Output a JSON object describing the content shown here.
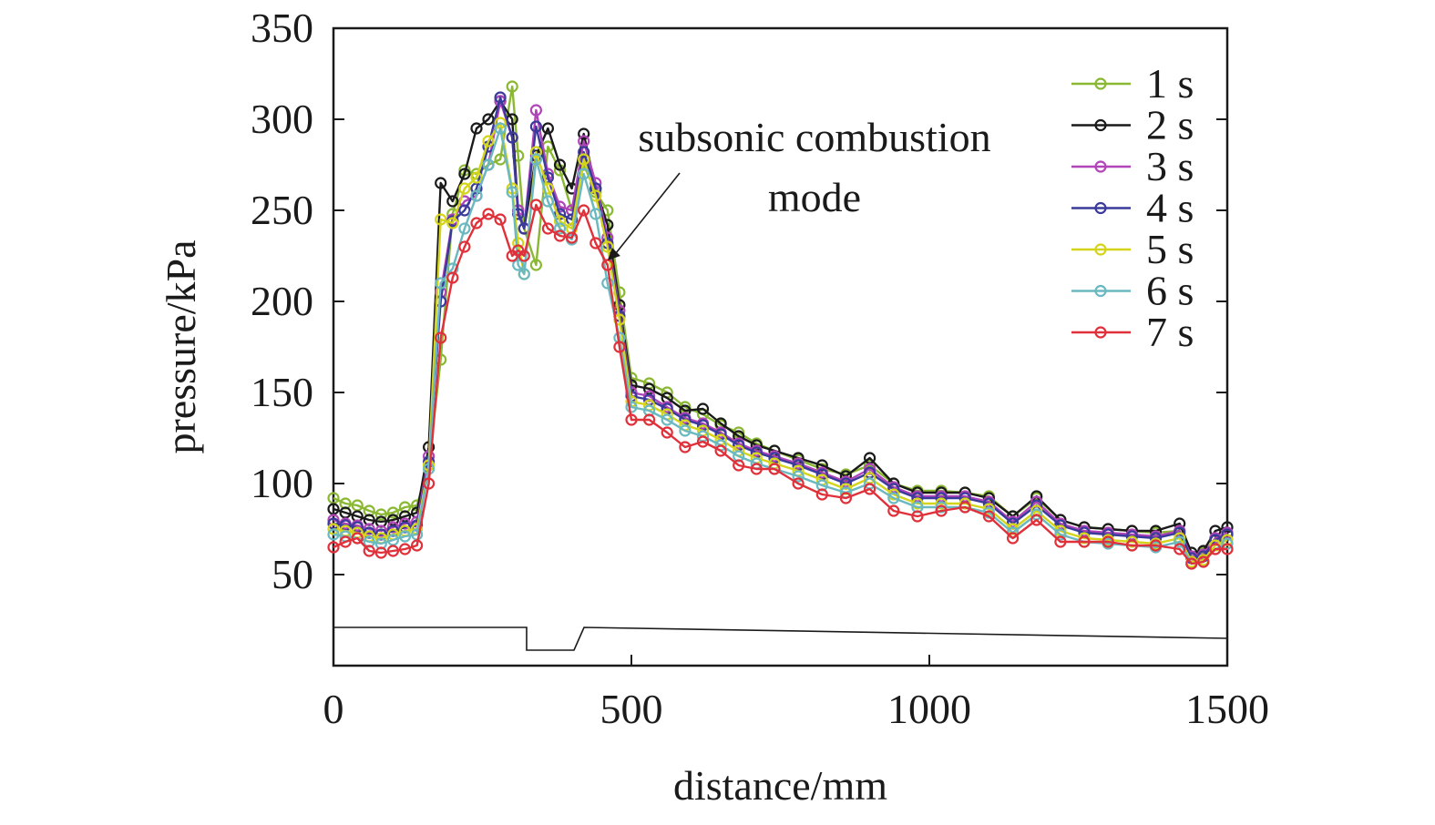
{
  "chart_data": {
    "type": "line",
    "title": "",
    "xlabel": "distance/mm",
    "ylabel": "pressure/kPa",
    "xlim": [
      0,
      1500
    ],
    "ylim": [
      0,
      350
    ],
    "x_ticks": [
      0,
      500,
      1000,
      1500
    ],
    "y_ticks": [
      50,
      100,
      150,
      200,
      250,
      300,
      350
    ],
    "x_tick_labels": [
      "0",
      "500",
      "1000",
      "1500"
    ],
    "y_tick_labels": [
      "50",
      "100",
      "150",
      "200",
      "250",
      "300",
      "350"
    ],
    "grid": false,
    "legend_position": "top-right",
    "annotation": {
      "lines": [
        "subsonic combustion",
        "mode"
      ],
      "points_to": [
        460,
        225
      ]
    },
    "x": [
      0,
      20,
      40,
      60,
      80,
      100,
      120,
      140,
      160,
      180,
      200,
      220,
      240,
      260,
      280,
      300,
      310,
      320,
      340,
      360,
      380,
      400,
      420,
      440,
      460,
      480,
      500,
      530,
      560,
      590,
      620,
      650,
      680,
      710,
      740,
      780,
      820,
      860,
      900,
      940,
      980,
      1020,
      1060,
      1100,
      1140,
      1180,
      1220,
      1260,
      1300,
      1340,
      1380,
      1420,
      1440,
      1460,
      1480,
      1500
    ],
    "series": [
      {
        "name": "1 s",
        "color": "#8ab833",
        "values": [
          92,
          89,
          88,
          85,
          83,
          84,
          87,
          88,
          110,
          168,
          248,
          272,
          270,
          275,
          278,
          318,
          280,
          240,
          220,
          285,
          272,
          250,
          275,
          260,
          250,
          205,
          158,
          155,
          150,
          142,
          138,
          132,
          128,
          122,
          118,
          113,
          108,
          105,
          110,
          100,
          96,
          96,
          95,
          93,
          82,
          92,
          80,
          76,
          75,
          74,
          73,
          74,
          60,
          62,
          70,
          72
        ]
      },
      {
        "name": "2 s",
        "color": "#1a1a1a",
        "values": [
          86,
          84,
          82,
          80,
          79,
          80,
          82,
          84,
          120,
          265,
          255,
          270,
          295,
          300,
          310,
          300,
          250,
          240,
          280,
          295,
          275,
          262,
          292,
          262,
          242,
          198,
          154,
          152,
          147,
          140,
          141,
          133,
          126,
          121,
          118,
          114,
          110,
          104,
          114,
          100,
          95,
          95,
          95,
          92,
          82,
          93,
          80,
          76,
          75,
          74,
          74,
          78,
          62,
          63,
          74,
          76
        ]
      },
      {
        "name": "3 s",
        "color": "#b044b8",
        "values": [
          80,
          78,
          77,
          75,
          74,
          76,
          78,
          79,
          115,
          205,
          245,
          255,
          258,
          275,
          310,
          290,
          250,
          240,
          305,
          270,
          252,
          250,
          288,
          265,
          235,
          195,
          150,
          148,
          142,
          136,
          133,
          128,
          122,
          118,
          115,
          111,
          106,
          101,
          108,
          98,
          93,
          93,
          93,
          90,
          79,
          90,
          78,
          74,
          73,
          72,
          71,
          74,
          60,
          61,
          70,
          73
        ]
      },
      {
        "name": "4 s",
        "color": "#3a3a9a",
        "values": [
          78,
          77,
          76,
          73,
          72,
          74,
          76,
          77,
          112,
          200,
          244,
          250,
          262,
          285,
          312,
          290,
          248,
          240,
          296,
          268,
          248,
          245,
          282,
          262,
          232,
          192,
          148,
          146,
          141,
          135,
          132,
          127,
          121,
          117,
          114,
          110,
          105,
          100,
          106,
          97,
          92,
          92,
          92,
          89,
          78,
          88,
          77,
          73,
          72,
          71,
          70,
          73,
          59,
          60,
          69,
          72
        ]
      },
      {
        "name": "5 s",
        "color": "#d4d41a",
        "values": [
          75,
          74,
          73,
          71,
          70,
          72,
          74,
          75,
          110,
          245,
          243,
          262,
          268,
          288,
          298,
          262,
          232,
          215,
          282,
          262,
          244,
          240,
          278,
          258,
          230,
          190,
          145,
          143,
          138,
          132,
          129,
          124,
          118,
          114,
          111,
          107,
          102,
          97,
          103,
          94,
          89,
          89,
          89,
          86,
          75,
          85,
          74,
          70,
          69,
          68,
          67,
          70,
          57,
          58,
          66,
          69
        ]
      },
      {
        "name": "6 s",
        "color": "#6ab8c0",
        "values": [
          72,
          71,
          70,
          68,
          67,
          69,
          71,
          72,
          108,
          210,
          218,
          240,
          258,
          275,
          295,
          260,
          220,
          215,
          278,
          255,
          240,
          234,
          270,
          248,
          210,
          180,
          142,
          140,
          135,
          129,
          126,
          121,
          115,
          111,
          108,
          104,
          99,
          95,
          100,
          92,
          87,
          87,
          87,
          84,
          73,
          83,
          72,
          68,
          67,
          66,
          65,
          68,
          56,
          57,
          64,
          67
        ]
      },
      {
        "name": "7 s",
        "color": "#e0303a",
        "values": [
          65,
          68,
          70,
          63,
          62,
          63,
          64,
          66,
          100,
          180,
          213,
          230,
          243,
          248,
          245,
          225,
          228,
          225,
          253,
          240,
          236,
          235,
          250,
          232,
          220,
          175,
          135,
          135,
          128,
          120,
          123,
          118,
          110,
          108,
          108,
          100,
          94,
          92,
          97,
          85,
          82,
          85,
          87,
          82,
          70,
          80,
          68,
          68,
          68,
          66,
          66,
          64,
          56,
          57,
          64,
          64
        ]
      }
    ]
  }
}
